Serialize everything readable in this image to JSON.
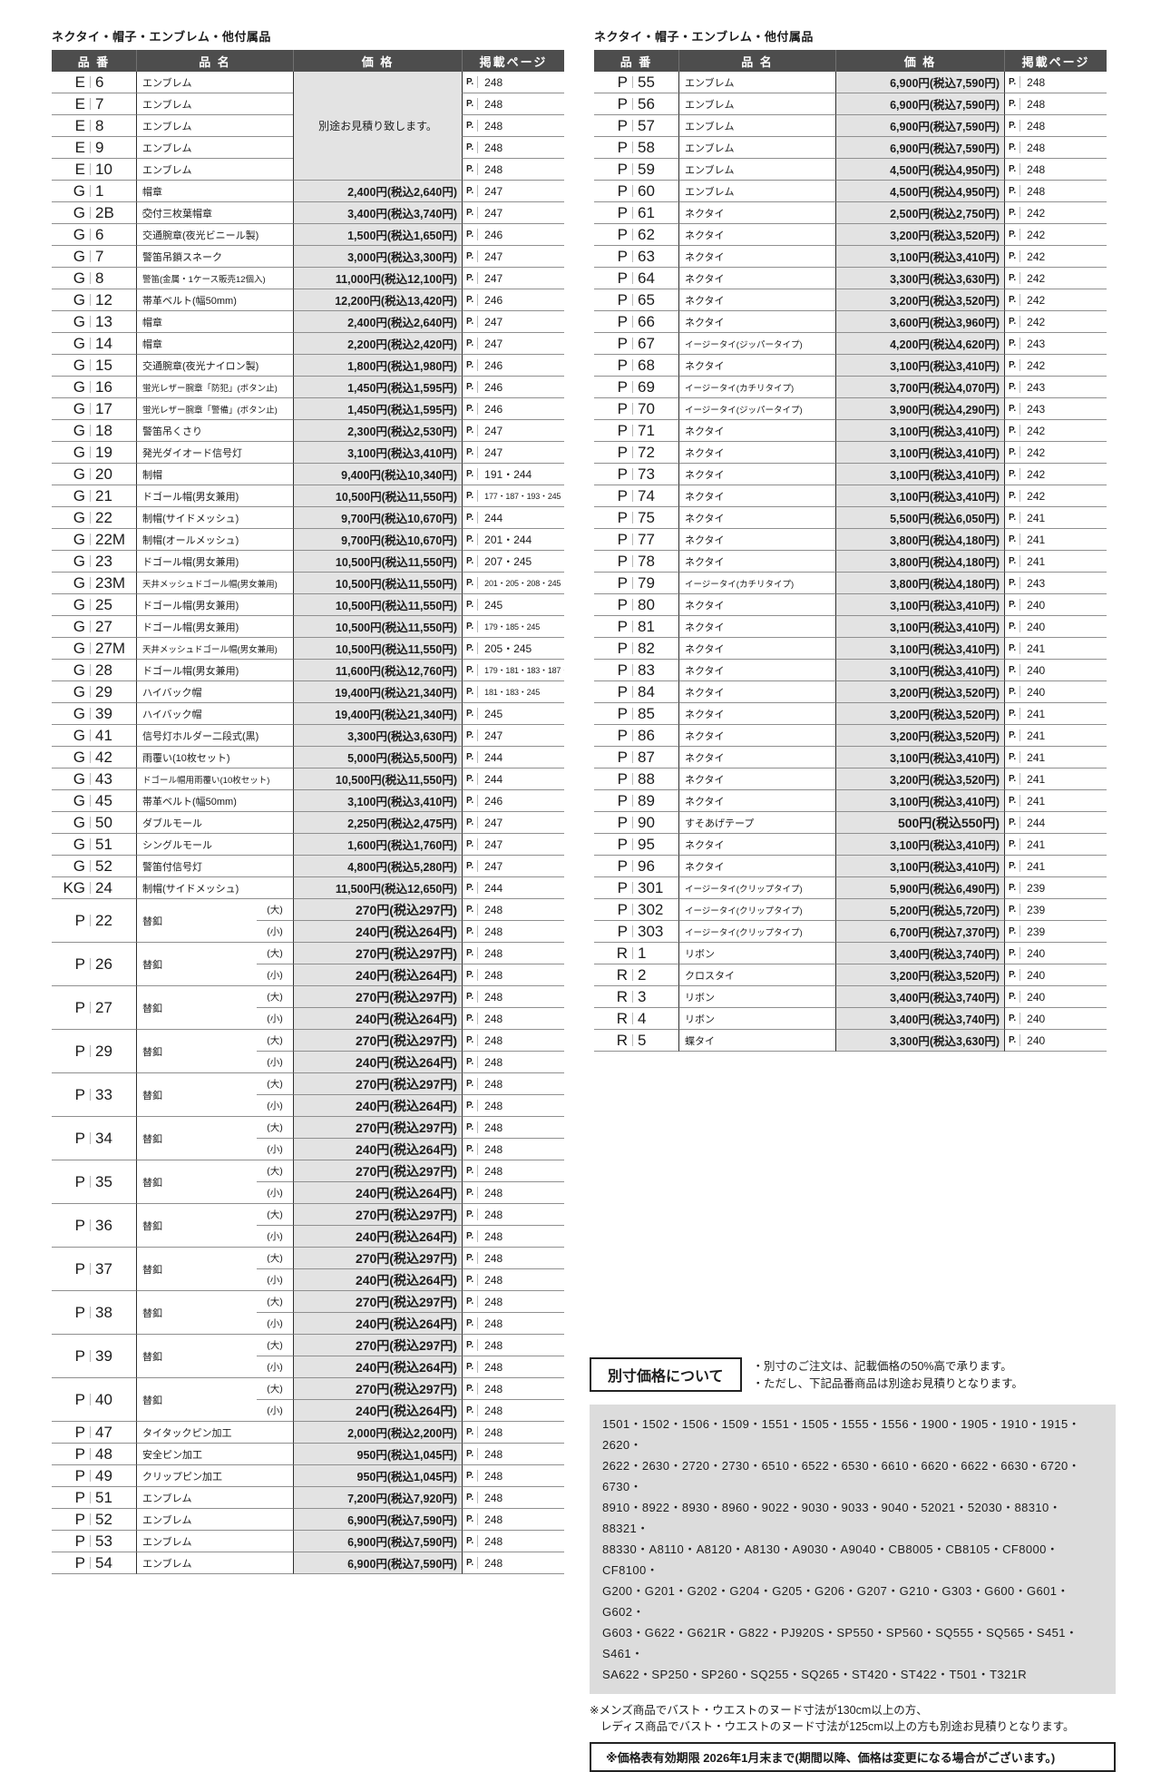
{
  "left_table": {
    "title": "ネクタイ・帽子・エンブレム・他付属品",
    "headers": {
      "code": "品 番",
      "name": "品 名",
      "price": "価 格",
      "page": "掲載ページ"
    },
    "rows": [
      {
        "c": "E",
        "n": "6",
        "name": "エンブレム",
        "estimate_span": 5,
        "page": "248"
      },
      {
        "c": "E",
        "n": "7",
        "name": "エンブレム",
        "noprice": true,
        "page": "248"
      },
      {
        "c": "E",
        "n": "8",
        "name": "エンブレム",
        "noprice": true,
        "page": "248"
      },
      {
        "c": "E",
        "n": "9",
        "name": "エンブレム",
        "noprice": true,
        "page": "248"
      },
      {
        "c": "E",
        "n": "10",
        "name": "エンブレム",
        "noprice": true,
        "page": "248"
      },
      {
        "c": "G",
        "n": "1",
        "name": "帽章",
        "price": "2,400円(税込2,640円)",
        "page": "247"
      },
      {
        "c": "G",
        "n": "2B",
        "name": "交⃝付三枚葉帽章",
        "price": "3,400円(税込3,740円)",
        "page": "247"
      },
      {
        "c": "G",
        "n": "6",
        "name": "交通腕章(夜光ビニール製)",
        "price": "1,500円(税込1,650円)",
        "page": "246"
      },
      {
        "c": "G",
        "n": "7",
        "name": "警笛吊鎖スネーク",
        "price": "3,000円(税込3,300円)",
        "page": "247"
      },
      {
        "c": "G",
        "n": "8",
        "name": "警笛(金属・1ケース販売12個入)",
        "price": "11,000円(税込12,100円)",
        "page": "247"
      },
      {
        "c": "G",
        "n": "12",
        "name": "帯革ベルト(幅50mm)",
        "price": "12,200円(税込13,420円)",
        "page": "246"
      },
      {
        "c": "G",
        "n": "13",
        "name": "帽章",
        "price": "2,400円(税込2,640円)",
        "page": "247"
      },
      {
        "c": "G",
        "n": "14",
        "name": "帽章",
        "price": "2,200円(税込2,420円)",
        "page": "247"
      },
      {
        "c": "G",
        "n": "15",
        "name": "交通腕章(夜光ナイロン製)",
        "price": "1,800円(税込1,980円)",
        "page": "246"
      },
      {
        "c": "G",
        "n": "16",
        "name": "蛍光レザー腕章「防犯」(ボタン止)",
        "price": "1,450円(税込1,595円)",
        "page": "246"
      },
      {
        "c": "G",
        "n": "17",
        "name": "蛍光レザー腕章「警備」(ボタン止)",
        "price": "1,450円(税込1,595円)",
        "page": "246"
      },
      {
        "c": "G",
        "n": "18",
        "name": "警笛吊くさり",
        "price": "2,300円(税込2,530円)",
        "page": "247"
      },
      {
        "c": "G",
        "n": "19",
        "name": "発光ダイオード信号灯",
        "price": "3,100円(税込3,410円)",
        "page": "247"
      },
      {
        "c": "G",
        "n": "20",
        "name": "制帽",
        "price": "9,400円(税込10,340円)",
        "page": "191・244"
      },
      {
        "c": "G",
        "n": "21",
        "name": "ドゴール帽(男女兼用)",
        "price": "10,500円(税込11,550円)",
        "page": "177・187・193・245"
      },
      {
        "c": "G",
        "n": "22",
        "name": "制帽(サイドメッシュ)",
        "price": "9,700円(税込10,670円)",
        "page": "244"
      },
      {
        "c": "G",
        "n": "22M",
        "name": "制帽(オールメッシュ)",
        "price": "9,700円(税込10,670円)",
        "page": "201・244"
      },
      {
        "c": "G",
        "n": "23",
        "name": "ドゴール帽(男女兼用)",
        "price": "10,500円(税込11,550円)",
        "page": "207・245"
      },
      {
        "c": "G",
        "n": "23M",
        "name": "天井メッシュドゴール帽(男女兼用)",
        "price": "10,500円(税込11,550円)",
        "page": "201・205・208・245"
      },
      {
        "c": "G",
        "n": "25",
        "name": "ドゴール帽(男女兼用)",
        "price": "10,500円(税込11,550円)",
        "page": "245"
      },
      {
        "c": "G",
        "n": "27",
        "name": "ドゴール帽(男女兼用)",
        "price": "10,500円(税込11,550円)",
        "page": "179・185・245"
      },
      {
        "c": "G",
        "n": "27M",
        "name": "天井メッシュドゴール帽(男女兼用)",
        "price": "10,500円(税込11,550円)",
        "page": "205・245"
      },
      {
        "c": "G",
        "n": "28",
        "name": "ドゴール帽(男女兼用)",
        "price": "11,600円(税込12,760円)",
        "page": "179・181・183・187・245"
      },
      {
        "c": "G",
        "n": "29",
        "name": "ハイバック帽",
        "price": "19,400円(税込21,340円)",
        "page": "181・183・245"
      },
      {
        "c": "G",
        "n": "39",
        "name": "ハイバック帽",
        "price": "19,400円(税込21,340円)",
        "page": "245"
      },
      {
        "c": "G",
        "n": "41",
        "name": "信号灯ホルダー二段式(黒)",
        "price": "3,300円(税込3,630円)",
        "page": "247"
      },
      {
        "c": "G",
        "n": "42",
        "name": "雨覆い(10枚セット)",
        "price": "5,000円(税込5,500円)",
        "page": "244"
      },
      {
        "c": "G",
        "n": "43",
        "name": "ドゴール帽用雨覆い(10枚セット)",
        "price": "10,500円(税込11,550円)",
        "page": "244"
      },
      {
        "c": "G",
        "n": "45",
        "name": "帯革ベルト(幅50mm)",
        "price": "3,100円(税込3,410円)",
        "page": "246"
      },
      {
        "c": "G",
        "n": "50",
        "name": "ダブルモール",
        "price": "2,250円(税込2,475円)",
        "page": "247"
      },
      {
        "c": "G",
        "n": "51",
        "name": "シングルモール",
        "price": "1,600円(税込1,760円)",
        "page": "247"
      },
      {
        "c": "G",
        "n": "52",
        "name": "警笛付信号灯",
        "price": "4,800円(税込5,280円)",
        "page": "247"
      },
      {
        "c": "KG",
        "n": "24",
        "name": "制帽(サイドメッシュ)",
        "price": "11,500円(税込12,650円)",
        "page": "244"
      },
      {
        "c": "P",
        "n": "22",
        "name": "替釦",
        "subs": [
          {
            "size": "(大)",
            "price": "270円(税込297円)",
            "page": "248"
          },
          {
            "size": "(小)",
            "price": "240円(税込264円)",
            "page": "248"
          }
        ]
      },
      {
        "c": "P",
        "n": "26",
        "name": "替釦",
        "subs": [
          {
            "size": "(大)",
            "price": "270円(税込297円)",
            "page": "248"
          },
          {
            "size": "(小)",
            "price": "240円(税込264円)",
            "page": "248"
          }
        ]
      },
      {
        "c": "P",
        "n": "27",
        "name": "替釦",
        "subs": [
          {
            "size": "(大)",
            "price": "270円(税込297円)",
            "page": "248"
          },
          {
            "size": "(小)",
            "price": "240円(税込264円)",
            "page": "248"
          }
        ]
      },
      {
        "c": "P",
        "n": "29",
        "name": "替釦",
        "subs": [
          {
            "size": "(大)",
            "price": "270円(税込297円)",
            "page": "248"
          },
          {
            "size": "(小)",
            "price": "240円(税込264円)",
            "page": "248"
          }
        ]
      },
      {
        "c": "P",
        "n": "33",
        "name": "替釦",
        "subs": [
          {
            "size": "(大)",
            "price": "270円(税込297円)",
            "page": "248"
          },
          {
            "size": "(小)",
            "price": "240円(税込264円)",
            "page": "248"
          }
        ]
      },
      {
        "c": "P",
        "n": "34",
        "name": "替釦",
        "subs": [
          {
            "size": "(大)",
            "price": "270円(税込297円)",
            "page": "248"
          },
          {
            "size": "(小)",
            "price": "240円(税込264円)",
            "page": "248"
          }
        ]
      },
      {
        "c": "P",
        "n": "35",
        "name": "替釦",
        "subs": [
          {
            "size": "(大)",
            "price": "270円(税込297円)",
            "page": "248"
          },
          {
            "size": "(小)",
            "price": "240円(税込264円)",
            "page": "248"
          }
        ]
      },
      {
        "c": "P",
        "n": "36",
        "name": "替釦",
        "subs": [
          {
            "size": "(大)",
            "price": "270円(税込297円)",
            "page": "248"
          },
          {
            "size": "(小)",
            "price": "240円(税込264円)",
            "page": "248"
          }
        ]
      },
      {
        "c": "P",
        "n": "37",
        "name": "替釦",
        "subs": [
          {
            "size": "(大)",
            "price": "270円(税込297円)",
            "page": "248"
          },
          {
            "size": "(小)",
            "price": "240円(税込264円)",
            "page": "248"
          }
        ]
      },
      {
        "c": "P",
        "n": "38",
        "name": "替釦",
        "subs": [
          {
            "size": "(大)",
            "price": "270円(税込297円)",
            "page": "248"
          },
          {
            "size": "(小)",
            "price": "240円(税込264円)",
            "page": "248"
          }
        ]
      },
      {
        "c": "P",
        "n": "39",
        "name": "替釦",
        "subs": [
          {
            "size": "(大)",
            "price": "270円(税込297円)",
            "page": "248"
          },
          {
            "size": "(小)",
            "price": "240円(税込264円)",
            "page": "248"
          }
        ]
      },
      {
        "c": "P",
        "n": "40",
        "name": "替釦",
        "subs": [
          {
            "size": "(大)",
            "price": "270円(税込297円)",
            "page": "248"
          },
          {
            "size": "(小)",
            "price": "240円(税込264円)",
            "page": "248"
          }
        ]
      },
      {
        "c": "P",
        "n": "47",
        "name": "タイタックピン加工",
        "price": "2,000円(税込2,200円)",
        "page": "248"
      },
      {
        "c": "P",
        "n": "48",
        "name": "安全ピン加工",
        "price": "950円(税込1,045円)",
        "page": "248"
      },
      {
        "c": "P",
        "n": "49",
        "name": "クリップピン加工",
        "price": "950円(税込1,045円)",
        "page": "248"
      },
      {
        "c": "P",
        "n": "51",
        "name": "エンブレム",
        "price": "7,200円(税込7,920円)",
        "page": "248"
      },
      {
        "c": "P",
        "n": "52",
        "name": "エンブレム",
        "price": "6,900円(税込7,590円)",
        "page": "248"
      },
      {
        "c": "P",
        "n": "53",
        "name": "エンブレム",
        "price": "6,900円(税込7,590円)",
        "page": "248"
      },
      {
        "c": "P",
        "n": "54",
        "name": "エンブレム",
        "price": "6,900円(税込7,590円)",
        "page": "248"
      }
    ]
  },
  "right_table": {
    "title": "ネクタイ・帽子・エンブレム・他付属品",
    "headers": {
      "code": "品 番",
      "name": "品 名",
      "price": "価 格",
      "page": "掲載ページ"
    },
    "rows": [
      {
        "c": "P",
        "n": "55",
        "name": "エンブレム",
        "price": "6,900円(税込7,590円)",
        "page": "248"
      },
      {
        "c": "P",
        "n": "56",
        "name": "エンブレム",
        "price": "6,900円(税込7,590円)",
        "page": "248"
      },
      {
        "c": "P",
        "n": "57",
        "name": "エンブレム",
        "price": "6,900円(税込7,590円)",
        "page": "248"
      },
      {
        "c": "P",
        "n": "58",
        "name": "エンブレム",
        "price": "6,900円(税込7,590円)",
        "page": "248"
      },
      {
        "c": "P",
        "n": "59",
        "name": "エンブレム",
        "price": "4,500円(税込4,950円)",
        "page": "248"
      },
      {
        "c": "P",
        "n": "60",
        "name": "エンブレム",
        "price": "4,500円(税込4,950円)",
        "page": "248"
      },
      {
        "c": "P",
        "n": "61",
        "name": "ネクタイ",
        "price": "2,500円(税込2,750円)",
        "page": "242"
      },
      {
        "c": "P",
        "n": "62",
        "name": "ネクタイ",
        "price": "3,200円(税込3,520円)",
        "page": "242"
      },
      {
        "c": "P",
        "n": "63",
        "name": "ネクタイ",
        "price": "3,100円(税込3,410円)",
        "page": "242"
      },
      {
        "c": "P",
        "n": "64",
        "name": "ネクタイ",
        "price": "3,300円(税込3,630円)",
        "page": "242"
      },
      {
        "c": "P",
        "n": "65",
        "name": "ネクタイ",
        "price": "3,200円(税込3,520円)",
        "page": "242"
      },
      {
        "c": "P",
        "n": "66",
        "name": "ネクタイ",
        "price": "3,600円(税込3,960円)",
        "page": "242"
      },
      {
        "c": "P",
        "n": "67",
        "name": "イージータイ(ジッパータイプ)",
        "price": "4,200円(税込4,620円)",
        "page": "243"
      },
      {
        "c": "P",
        "n": "68",
        "name": "ネクタイ",
        "price": "3,100円(税込3,410円)",
        "page": "242"
      },
      {
        "c": "P",
        "n": "69",
        "name": "イージータイ(カチリタイプ)",
        "price": "3,700円(税込4,070円)",
        "page": "243"
      },
      {
        "c": "P",
        "n": "70",
        "name": "イージータイ(ジッパータイプ)",
        "price": "3,900円(税込4,290円)",
        "page": "243"
      },
      {
        "c": "P",
        "n": "71",
        "name": "ネクタイ",
        "price": "3,100円(税込3,410円)",
        "page": "242"
      },
      {
        "c": "P",
        "n": "72",
        "name": "ネクタイ",
        "price": "3,100円(税込3,410円)",
        "page": "242"
      },
      {
        "c": "P",
        "n": "73",
        "name": "ネクタイ",
        "price": "3,100円(税込3,410円)",
        "page": "242"
      },
      {
        "c": "P",
        "n": "74",
        "name": "ネクタイ",
        "price": "3,100円(税込3,410円)",
        "page": "242"
      },
      {
        "c": "P",
        "n": "75",
        "name": "ネクタイ",
        "price": "5,500円(税込6,050円)",
        "page": "241"
      },
      {
        "c": "P",
        "n": "77",
        "name": "ネクタイ",
        "price": "3,800円(税込4,180円)",
        "page": "241"
      },
      {
        "c": "P",
        "n": "78",
        "name": "ネクタイ",
        "price": "3,800円(税込4,180円)",
        "page": "241"
      },
      {
        "c": "P",
        "n": "79",
        "name": "イージータイ(カチリタイプ)",
        "price": "3,800円(税込4,180円)",
        "page": "243"
      },
      {
        "c": "P",
        "n": "80",
        "name": "ネクタイ",
        "price": "3,100円(税込3,410円)",
        "page": "240"
      },
      {
        "c": "P",
        "n": "81",
        "name": "ネクタイ",
        "price": "3,100円(税込3,410円)",
        "page": "240"
      },
      {
        "c": "P",
        "n": "82",
        "name": "ネクタイ",
        "price": "3,100円(税込3,410円)",
        "page": "241"
      },
      {
        "c": "P",
        "n": "83",
        "name": "ネクタイ",
        "price": "3,100円(税込3,410円)",
        "page": "240"
      },
      {
        "c": "P",
        "n": "84",
        "name": "ネクタイ",
        "price": "3,200円(税込3,520円)",
        "page": "240"
      },
      {
        "c": "P",
        "n": "85",
        "name": "ネクタイ",
        "price": "3,200円(税込3,520円)",
        "page": "241"
      },
      {
        "c": "P",
        "n": "86",
        "name": "ネクタイ",
        "price": "3,200円(税込3,520円)",
        "page": "241"
      },
      {
        "c": "P",
        "n": "87",
        "name": "ネクタイ",
        "price": "3,100円(税込3,410円)",
        "page": "241"
      },
      {
        "c": "P",
        "n": "88",
        "name": "ネクタイ",
        "price": "3,200円(税込3,520円)",
        "page": "241"
      },
      {
        "c": "P",
        "n": "89",
        "name": "ネクタイ",
        "price": "3,100円(税込3,410円)",
        "page": "241"
      },
      {
        "c": "P",
        "n": "90",
        "name": "すそあげテープ",
        "price": "500円(税込550円)",
        "page": "244"
      },
      {
        "c": "P",
        "n": "95",
        "name": "ネクタイ",
        "price": "3,100円(税込3,410円)",
        "page": "241"
      },
      {
        "c": "P",
        "n": "96",
        "name": "ネクタイ",
        "price": "3,100円(税込3,410円)",
        "page": "241"
      },
      {
        "c": "P",
        "n": "301",
        "name": "イージータイ(クリップタイプ)",
        "price": "5,900円(税込6,490円)",
        "page": "239"
      },
      {
        "c": "P",
        "n": "302",
        "name": "イージータイ(クリップタイプ)",
        "price": "5,200円(税込5,720円)",
        "page": "239"
      },
      {
        "c": "P",
        "n": "303",
        "name": "イージータイ(クリップタイプ)",
        "price": "6,700円(税込7,370円)",
        "page": "239"
      },
      {
        "c": "R",
        "n": "1",
        "name": "リボン",
        "price": "3,400円(税込3,740円)",
        "page": "240"
      },
      {
        "c": "R",
        "n": "2",
        "name": "クロスタイ",
        "price": "3,200円(税込3,520円)",
        "page": "240"
      },
      {
        "c": "R",
        "n": "3",
        "name": "リボン",
        "price": "3,400円(税込3,740円)",
        "page": "240"
      },
      {
        "c": "R",
        "n": "4",
        "name": "リボン",
        "price": "3,400円(税込3,740円)",
        "page": "240"
      },
      {
        "c": "R",
        "n": "5",
        "name": "蝶タイ",
        "price": "3,300円(税込3,630円)",
        "page": "240"
      }
    ]
  },
  "estimate_note": "別途お見積り致します。",
  "page_prefix": "P.",
  "special": {
    "box_label": "別寸価格について",
    "bullet1": "・別寸のご注文は、記載価格の50%高で承ります。",
    "bullet2": "・ただし、下記品番商品は別途お見積りとなります。",
    "codes_lines": [
      "1501・1502・1506・1509・1551・1505・1555・1556・1900・1905・1910・1915・2620・",
      "2622・2630・2720・2730・6510・6522・6530・6610・6620・6622・6630・6720・6730・",
      "8910・8922・8930・8960・9022・9030・9033・9040・52021・52030・88310・88321・",
      "88330・A8110・A8120・A8130・A9030・A9040・CB8005・CB8105・CF8000・CF8100・",
      "G200・G201・G202・G204・G205・G206・G207・G210・G303・G600・G601・G602・",
      "G603・G622・G621R・G822・PJ920S・SP550・SP560・SQ555・SQ565・S451・S461・",
      "SA622・SP250・SP260・SQ255・SQ265・ST420・ST422・T501・T321R"
    ],
    "note_line1": "※メンズ商品でバスト・ウエストのヌード寸法が130cm以上の方、",
    "note_line2": "レディス商品でバスト・ウエストのヌード寸法が125cm以上の方も別途お見積りとなります。",
    "validity": "※価格表有効期限 2026年1月末まで(期間以降、価格は変更になる場合がございます。)"
  }
}
